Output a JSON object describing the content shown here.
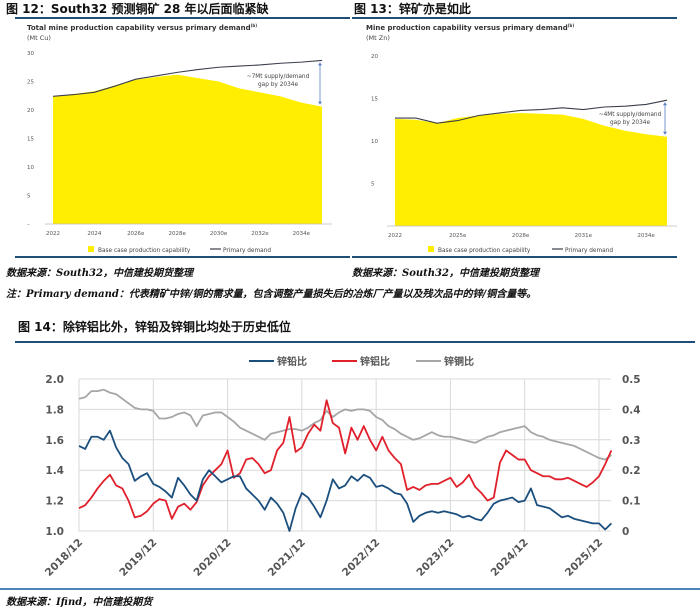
{
  "fig12": {
    "title": "图 12：South32 预测铜矿 28 年以后面临紧缺",
    "source": "数据来源：South32，中信建投期货整理"
  },
  "fig13": {
    "title": "图 13：锌矿亦是如此",
    "source": "数据来源：South32，中信建投期货整理"
  },
  "note": "注：Primary demand：代表精矿中锌/铜的需求量，包含调整产量损失后的冶炼厂产量以及残次品中的锌/铜含量等。",
  "fig14": {
    "title": "图 14：除锌铝比外，锌铅及锌铜比均处于历史低位",
    "source": "数据来源：Ifind，中信建投期货"
  },
  "chart_data": [
    {
      "type": "area",
      "title": "Total mine production capability versus primary demand",
      "title_sup": "(b)",
      "ylabel": "(Mt Cu)",
      "x": [
        2022,
        2023,
        2024,
        2025,
        2026,
        2027,
        2028,
        2029,
        2030,
        2031,
        2032,
        2033,
        2034,
        2035
      ],
      "xticks": [
        "2022",
        "2024",
        "2026e",
        "2028e",
        "2030e",
        "2032e",
        "2034e"
      ],
      "yticks": [
        "–",
        "5",
        "10",
        "15",
        "20",
        "25",
        "30"
      ],
      "ylim": [
        0,
        30
      ],
      "annotation": [
        "~7Mt supply/demand",
        "gap by 2034e"
      ],
      "series": [
        {
          "name": "Base case production capability",
          "kind": "area",
          "color": "#ffee00",
          "values": [
            22.3,
            22.8,
            23.3,
            24.3,
            25.3,
            25.8,
            26.2,
            25.6,
            25.0,
            23.8,
            23.1,
            22.4,
            21.3,
            20.6
          ]
        },
        {
          "name": "Primary demand",
          "kind": "line",
          "color": "#3a3f4a",
          "values": [
            22.4,
            22.7,
            23.1,
            24.2,
            25.4,
            26.0,
            26.6,
            27.1,
            27.5,
            27.7,
            27.9,
            28.2,
            28.4,
            28.7
          ]
        }
      ]
    },
    {
      "type": "area",
      "title": "Mine production capability versus primary demand",
      "title_sup": "(b)",
      "ylabel": "(Mt Zn)",
      "x": [
        2022,
        2023,
        2024,
        2025,
        2026,
        2027,
        2028,
        2029,
        2030,
        2031,
        2032,
        2033,
        2034,
        2035
      ],
      "xticks": [
        "2022",
        "2025e",
        "2028e",
        "2031e",
        "2034e"
      ],
      "yticks": [
        "5",
        "10",
        "15",
        "20"
      ],
      "ylim": [
        0,
        20
      ],
      "annotation": [
        "~4Mt supply/demand",
        "gap by 2034e"
      ],
      "series": [
        {
          "name": "Base case production capability",
          "kind": "area",
          "color": "#ffee00",
          "values": [
            12.6,
            12.5,
            12.1,
            12.7,
            13.0,
            13.2,
            13.3,
            13.2,
            13.1,
            12.6,
            11.8,
            11.2,
            10.8,
            10.5
          ]
        },
        {
          "name": "Primary demand",
          "kind": "line",
          "color": "#3a3f4a",
          "values": [
            12.7,
            12.7,
            12.1,
            12.4,
            13.0,
            13.3,
            13.6,
            13.7,
            13.9,
            13.7,
            14.0,
            14.1,
            14.3,
            14.8
          ]
        }
      ]
    },
    {
      "type": "line",
      "grid": true,
      "legend": "top",
      "xticks": [
        "2018/12",
        "2019/12",
        "2020/12",
        "2021/12",
        "2022/12",
        "2023/12",
        "2024/12",
        "2025/12"
      ],
      "yticks_left": [
        "1.0",
        "1.2",
        "1.4",
        "1.6",
        "1.8",
        "2.0"
      ],
      "ylim_left": [
        1.0,
        2.0
      ],
      "yticks_right": [
        "0",
        "0.1",
        "0.2",
        "0.3",
        "0.4",
        "0.5"
      ],
      "ylim_right": [
        0,
        0.5
      ],
      "x": [
        "2018-12",
        "2019-01",
        "2019-02",
        "2019-03",
        "2019-04",
        "2019-05",
        "2019-06",
        "2019-07",
        "2019-08",
        "2019-09",
        "2019-10",
        "2019-11",
        "2019-12",
        "2020-01",
        "2020-02",
        "2020-03",
        "2020-04",
        "2020-05",
        "2020-06",
        "2020-07",
        "2020-08",
        "2020-09",
        "2020-10",
        "2020-11",
        "2020-12",
        "2021-01",
        "2021-02",
        "2021-03",
        "2021-04",
        "2021-05",
        "2021-06",
        "2021-07",
        "2021-08",
        "2021-09",
        "2021-10",
        "2021-11",
        "2021-12",
        "2022-01",
        "2022-02",
        "2022-03",
        "2022-04",
        "2022-05",
        "2022-06",
        "2022-07",
        "2022-08",
        "2022-09",
        "2022-10",
        "2022-11",
        "2022-12",
        "2023-01",
        "2023-02",
        "2023-03",
        "2023-04",
        "2023-05",
        "2023-06",
        "2023-07",
        "2023-08",
        "2023-09",
        "2023-10",
        "2023-11",
        "2023-12",
        "2024-01",
        "2024-02",
        "2024-03",
        "2024-04",
        "2024-05",
        "2024-06",
        "2024-07",
        "2024-08",
        "2024-09",
        "2024-10",
        "2024-11",
        "2024-12",
        "2025-01",
        "2025-02",
        "2025-03",
        "2025-04",
        "2025-05",
        "2025-06",
        "2025-07",
        "2025-08",
        "2025-09",
        "2025-10",
        "2025-11",
        "2025-12",
        "2026-01",
        "2026-02"
      ],
      "series": [
        {
          "name": "锌铅比",
          "axis": "left",
          "color": "#1b4f7e",
          "values": [
            1.56,
            1.54,
            1.62,
            1.62,
            1.6,
            1.66,
            1.55,
            1.48,
            1.44,
            1.33,
            1.36,
            1.38,
            1.31,
            1.29,
            1.26,
            1.22,
            1.35,
            1.3,
            1.24,
            1.2,
            1.34,
            1.4,
            1.36,
            1.32,
            1.34,
            1.36,
            1.36,
            1.28,
            1.24,
            1.2,
            1.14,
            1.22,
            1.18,
            1.12,
            1.0,
            1.15,
            1.25,
            1.22,
            1.16,
            1.09,
            1.2,
            1.34,
            1.28,
            1.3,
            1.36,
            1.33,
            1.37,
            1.35,
            1.29,
            1.3,
            1.28,
            1.25,
            1.24,
            1.18,
            1.06,
            1.1,
            1.12,
            1.13,
            1.12,
            1.13,
            1.12,
            1.11,
            1.09,
            1.1,
            1.08,
            1.07,
            1.12,
            1.18,
            1.2,
            1.21,
            1.22,
            1.19,
            1.2,
            1.28,
            1.17,
            1.16,
            1.15,
            1.12,
            1.09,
            1.1,
            1.08,
            1.07,
            1.06,
            1.05,
            1.05,
            1.01,
            1.05
          ]
        },
        {
          "name": "锌铝比",
          "axis": "left",
          "color": "#e0202a",
          "values": [
            1.15,
            1.17,
            1.22,
            1.28,
            1.33,
            1.37,
            1.3,
            1.28,
            1.2,
            1.09,
            1.1,
            1.13,
            1.18,
            1.21,
            1.2,
            1.08,
            1.16,
            1.18,
            1.14,
            1.19,
            1.3,
            1.36,
            1.4,
            1.44,
            1.53,
            1.35,
            1.38,
            1.47,
            1.48,
            1.44,
            1.38,
            1.4,
            1.53,
            1.58,
            1.75,
            1.52,
            1.55,
            1.64,
            1.7,
            1.66,
            1.86,
            1.71,
            1.68,
            1.51,
            1.68,
            1.6,
            1.69,
            1.6,
            1.53,
            1.62,
            1.53,
            1.48,
            1.44,
            1.27,
            1.29,
            1.27,
            1.3,
            1.31,
            1.31,
            1.33,
            1.35,
            1.29,
            1.32,
            1.37,
            1.29,
            1.25,
            1.2,
            1.22,
            1.45,
            1.53,
            1.5,
            1.47,
            1.47,
            1.4,
            1.38,
            1.36,
            1.36,
            1.34,
            1.34,
            1.35,
            1.33,
            1.31,
            1.29,
            1.32,
            1.36,
            1.44,
            1.53
          ]
        },
        {
          "name": "锌铜比",
          "axis": "right",
          "color": "#a6a6a6",
          "values": [
            0.435,
            0.44,
            0.46,
            0.46,
            0.465,
            0.455,
            0.45,
            0.435,
            0.42,
            0.405,
            0.4,
            0.4,
            0.395,
            0.37,
            0.37,
            0.375,
            0.385,
            0.39,
            0.38,
            0.345,
            0.38,
            0.385,
            0.39,
            0.39,
            0.375,
            0.36,
            0.34,
            0.33,
            0.32,
            0.31,
            0.3,
            0.32,
            0.325,
            0.33,
            0.335,
            0.335,
            0.33,
            0.34,
            0.355,
            0.365,
            0.395,
            0.375,
            0.39,
            0.4,
            0.395,
            0.4,
            0.4,
            0.395,
            0.375,
            0.365,
            0.345,
            0.335,
            0.32,
            0.31,
            0.3,
            0.305,
            0.315,
            0.325,
            0.315,
            0.31,
            0.31,
            0.305,
            0.3,
            0.295,
            0.29,
            0.3,
            0.31,
            0.315,
            0.325,
            0.33,
            0.335,
            0.34,
            0.345,
            0.325,
            0.315,
            0.31,
            0.3,
            0.295,
            0.29,
            0.285,
            0.28,
            0.27,
            0.26,
            0.25,
            0.24,
            0.235,
            0.25
          ]
        }
      ]
    }
  ]
}
